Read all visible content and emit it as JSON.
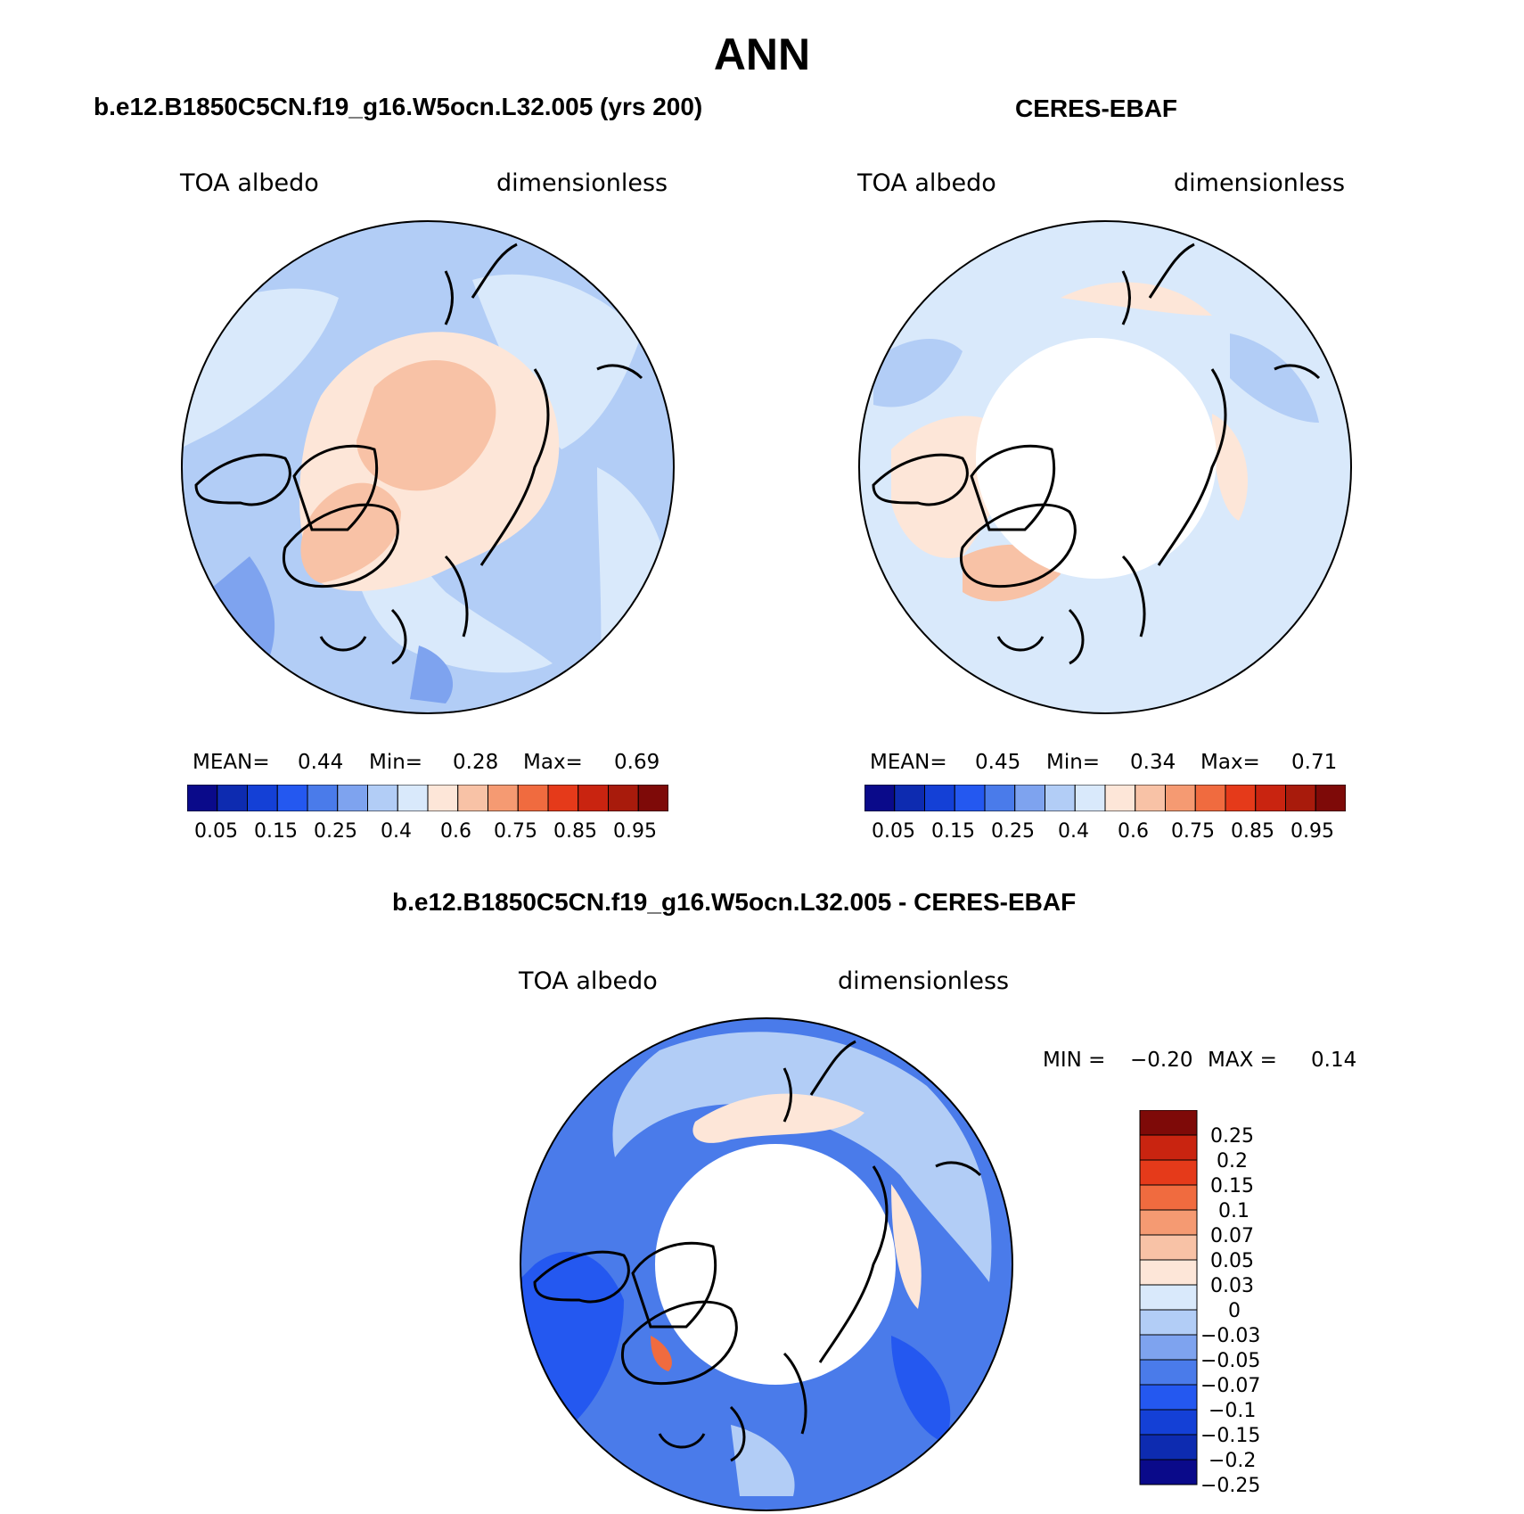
{
  "figure": {
    "title": "ANN",
    "difference_title": "b.e12.B1850C5CN.f19_g16.W5ocn.L32.005 - CERES-EBAF"
  },
  "panels": [
    {
      "title": "b.e12.B1850C5CN.f19_g16.W5ocn.L32.005 (yrs 200)",
      "variable": "TOA albedo",
      "units": "dimensionless",
      "stats": {
        "mean_label": "MEAN=",
        "mean": "0.44",
        "min_label": "Min=",
        "min": "0.28",
        "max_label": "Max=",
        "max": "0.69"
      }
    },
    {
      "title": "CERES-EBAF",
      "variable": "TOA albedo",
      "units": "dimensionless",
      "stats": {
        "mean_label": "MEAN=",
        "mean": "0.45",
        "min_label": "Min=",
        "min": "0.34",
        "max_label": "Max=",
        "max": "0.71"
      }
    },
    {
      "title": "b.e12.B1850C5CN.f19_g16.W5ocn.L32.005 - CERES-EBAF",
      "variable": "TOA albedo",
      "units": "dimensionless",
      "stats": {
        "min_label": "MIN =",
        "min": "−0.20",
        "max_label": "MAX =",
        "max": "0.14"
      }
    }
  ],
  "colors": {
    "abs_scale": [
      "#0a0a8a",
      "#0d2bb0",
      "#1440d6",
      "#2458f0",
      "#4a7bea",
      "#7ea3ef",
      "#b2cdf6",
      "#d9e9fb",
      "#fde6d8",
      "#f8c2a6",
      "#f59a72",
      "#f06b3f",
      "#e53a1a",
      "#c92410",
      "#a81b0c",
      "#7e0a08"
    ],
    "diff_scale": [
      "#0a0a8a",
      "#0d2bb0",
      "#1440d6",
      "#2458f0",
      "#4a7bea",
      "#7ea3ef",
      "#b2cdf6",
      "#d9e9fb",
      "#fde6d8",
      "#f8c2a6",
      "#f59a72",
      "#f06b3f",
      "#e53a1a",
      "#c92410",
      "#7e0a08"
    ],
    "land_outline": "#000000",
    "missing": "#ffffff"
  },
  "chart_data": [
    {
      "type": "heatmap",
      "projection": "north polar stereographic",
      "title": "b.e12.B1850C5CN.f19_g16.W5ocn.L32.005 (yrs 200)",
      "variable": "TOA albedo",
      "units": "dimensionless",
      "mean": 0.44,
      "min": 0.28,
      "max": 0.69,
      "colorbar_ticks": [
        "0.05",
        "0.15",
        "0.25",
        "0.4",
        "0.6",
        "0.75",
        "0.85",
        "0.95"
      ],
      "colorbar_levels": [
        0.05,
        0.1,
        0.15,
        0.2,
        0.25,
        0.3,
        0.4,
        0.5,
        0.6,
        0.7,
        0.75,
        0.8,
        0.85,
        0.9,
        0.95
      ]
    },
    {
      "type": "heatmap",
      "projection": "north polar stereographic",
      "title": "CERES-EBAF",
      "variable": "TOA albedo",
      "units": "dimensionless",
      "mean": 0.45,
      "min": 0.34,
      "max": 0.71,
      "colorbar_ticks": [
        "0.05",
        "0.15",
        "0.25",
        "0.4",
        "0.6",
        "0.75",
        "0.85",
        "0.95"
      ],
      "colorbar_levels": [
        0.05,
        0.1,
        0.15,
        0.2,
        0.25,
        0.3,
        0.4,
        0.5,
        0.6,
        0.7,
        0.75,
        0.8,
        0.85,
        0.9,
        0.95
      ]
    },
    {
      "type": "heatmap",
      "projection": "north polar stereographic",
      "title": "b.e12.B1850C5CN.f19_g16.W5ocn.L32.005 - CERES-EBAF",
      "variable": "TOA albedo",
      "units": "dimensionless",
      "min": -0.2,
      "max": 0.14,
      "colorbar_ticks": [
        "0.25",
        "0.2",
        "0.15",
        "0.1",
        "0.07",
        "0.05",
        "0.03",
        "0",
        "−0.03",
        "−0.05",
        "−0.07",
        "−0.1",
        "−0.15",
        "−0.2",
        "−0.25"
      ]
    }
  ]
}
